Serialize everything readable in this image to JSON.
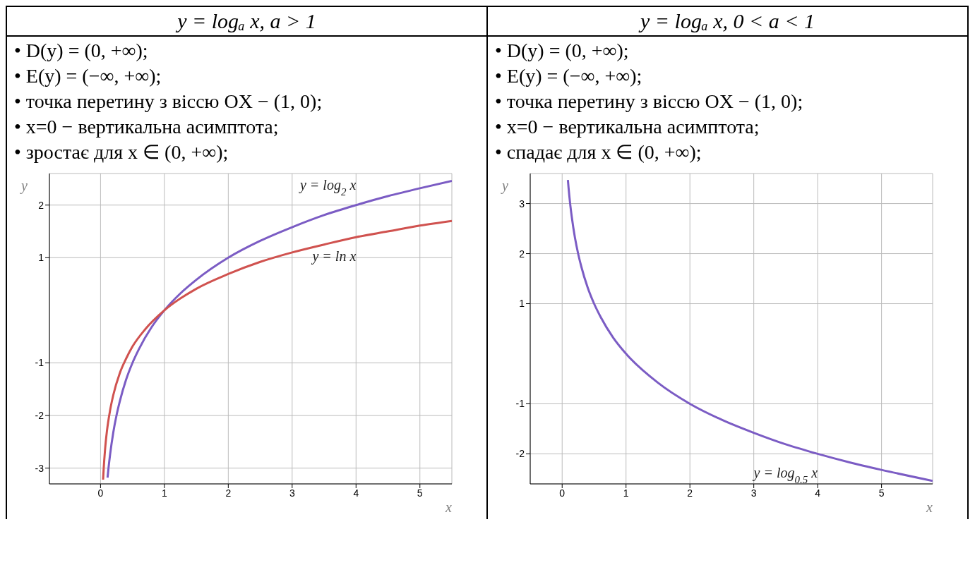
{
  "chart_data": [
    {
      "type": "line",
      "title": "y = logₐ x, a > 1",
      "annotations": [
        "• D(y) = (0,  +∞);",
        "• E(y) = (−∞,  +∞);",
        "• точка перетину з віссю OX − (1, 0);",
        "•  x=0 − вертикальна асимптота;",
        "• зростає для x ∈ (0, +∞);"
      ],
      "xlabel": "x",
      "ylabel": "y",
      "xlim": [
        -0.8,
        5.5
      ],
      "ylim": [
        -3.3,
        2.6
      ],
      "xticks": [
        0,
        1,
        2,
        3,
        4,
        5
      ],
      "yticks": [
        -3,
        -2,
        -1,
        1,
        2
      ],
      "grid": true,
      "series": [
        {
          "name": "y = log$_{2}$ x",
          "color": "#7b5cc4",
          "x": [
            0.11,
            0.125,
            0.15,
            0.2,
            0.25,
            0.3,
            0.4,
            0.5,
            0.6,
            0.8,
            1,
            1.25,
            1.5,
            2,
            2.5,
            3,
            3.5,
            4,
            4.5,
            5,
            5.5
          ],
          "values": [
            -3.18,
            -3,
            -2.74,
            -2.32,
            -2,
            -1.74,
            -1.32,
            -1,
            -0.74,
            -0.32,
            0,
            0.32,
            0.58,
            1,
            1.32,
            1.58,
            1.81,
            2,
            2.17,
            2.32,
            2.46
          ]
        },
        {
          "name": "y = ln x",
          "color": "#d0524f",
          "x": [
            0.04,
            0.05,
            0.07,
            0.1,
            0.15,
            0.2,
            0.3,
            0.4,
            0.5,
            0.7,
            1,
            1.5,
            2,
            2.5,
            3,
            3.5,
            4,
            4.5,
            5,
            5.5
          ],
          "values": [
            -3.22,
            -3,
            -2.66,
            -2.3,
            -1.9,
            -1.61,
            -1.2,
            -0.92,
            -0.69,
            -0.36,
            0,
            0.41,
            0.69,
            0.92,
            1.1,
            1.25,
            1.39,
            1.5,
            1.61,
            1.7
          ]
        }
      ]
    },
    {
      "type": "line",
      "title": "y = logₐ x, 0 < a < 1",
      "annotations": [
        "• D(y) = (0,  +∞);",
        "• E(y) = (−∞,  +∞);",
        "•  точка перетину з віссю OX − (1, 0);",
        "•  x=0 − вертикальна асимптота;",
        "• спадає для x ∈ (0, +∞);"
      ],
      "xlabel": "x",
      "ylabel": "y",
      "xlim": [
        -0.5,
        5.8
      ],
      "ylim": [
        -2.6,
        3.6
      ],
      "xticks": [
        0,
        1,
        2,
        3,
        4,
        5
      ],
      "yticks": [
        -2,
        -1,
        1,
        2,
        3
      ],
      "grid": true,
      "series": [
        {
          "name": "y = log$_{0.5}$ x",
          "color": "#7b5cc4",
          "x": [
            0.09,
            0.1,
            0.125,
            0.15,
            0.2,
            0.25,
            0.3,
            0.4,
            0.5,
            0.6,
            0.8,
            1,
            1.5,
            2,
            2.5,
            3,
            3.5,
            4,
            4.5,
            5,
            5.8
          ],
          "values": [
            3.47,
            3.32,
            3,
            2.74,
            2.32,
            2,
            1.74,
            1.32,
            1,
            0.74,
            0.32,
            0,
            -0.58,
            -1,
            -1.32,
            -1.58,
            -1.81,
            -2,
            -2.17,
            -2.32,
            -2.54
          ]
        }
      ]
    }
  ]
}
